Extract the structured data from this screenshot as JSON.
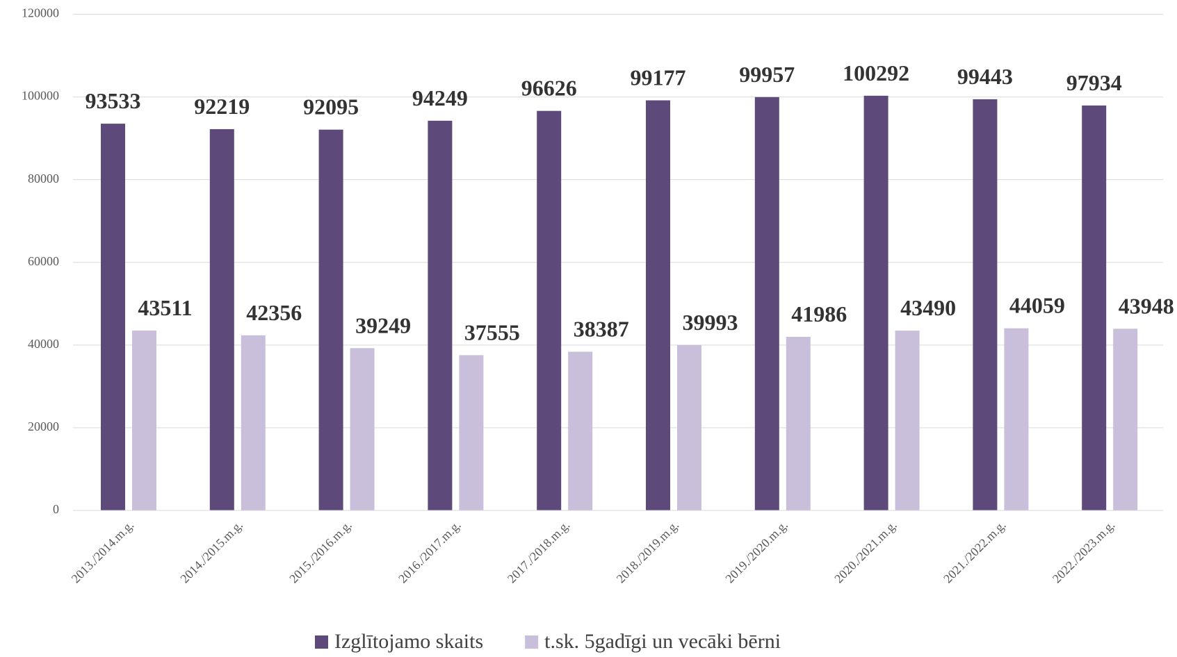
{
  "chart_data": {
    "type": "bar",
    "categories": [
      "2013./2014.m.g.",
      "2014./2015.m.g.",
      "2015./2016.m.g.",
      "2016./2017.m.g.",
      "2017./2018.m.g.",
      "2018./2019.m.g.",
      "2019./2020.m.g.",
      "2020./2021.m.g.",
      "2021./2022.m.g.",
      "2022./2023.m.g."
    ],
    "series": [
      {
        "name": "Izglītojamo skaits",
        "color": "#5e4a7a",
        "values": [
          93533,
          92219,
          92095,
          94249,
          96626,
          99177,
          99957,
          100292,
          99443,
          97934
        ]
      },
      {
        "name": "t.sk. 5gadīgi un vecāki bērni",
        "color": "#c9bfdb",
        "values": [
          43511,
          42356,
          39249,
          37555,
          38387,
          39993,
          41986,
          43490,
          44059,
          43948
        ]
      }
    ],
    "ylim": [
      0,
      120000
    ],
    "yticks": [
      0,
      20000,
      40000,
      60000,
      80000,
      100000,
      120000
    ],
    "grid": true,
    "legend": "bottom"
  }
}
